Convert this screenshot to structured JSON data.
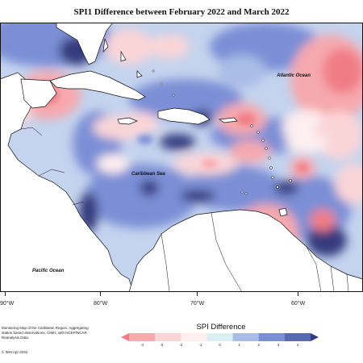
{
  "title": "SPI1 Difference between February 2022 and March 2022",
  "labels": {
    "atlantic": "Atlantic Ocean",
    "caribbean": "Caribbean Sea",
    "pacific": "Pacific Ocean"
  },
  "longitudes": [
    "90°W",
    "80°W",
    "70°W",
    "60°W"
  ],
  "credit": "Monitoring Map of the Caribbean Region. Aggregating station based observations, CIMH, with NCEP/NCAR Reanalysis Data.",
  "copyright": "© IMH Apr-2022",
  "legend": {
    "title": "SPI Difference",
    "ticks": [
      "-4",
      "-3",
      "-2",
      "-1",
      "0",
      "1",
      "2",
      "3",
      "4"
    ],
    "colors": [
      "#f07d86",
      "#f6a9ae",
      "#fad5d8",
      "#fdeef0",
      "#dbeef2",
      "#a9bde7",
      "#7b8fd6",
      "#5a69b4",
      "#363a7e"
    ]
  },
  "colors": {
    "land": "#ffffff",
    "deep_blue": "#363a7e",
    "mid_blue": "#7b8fd6",
    "light_blue": "#a9bde7",
    "pale_blue": "#dbeef2",
    "pale_pink": "#fdeef0",
    "light_pink": "#fad5d8",
    "pink": "#f6a9ae",
    "red": "#f07d86"
  }
}
